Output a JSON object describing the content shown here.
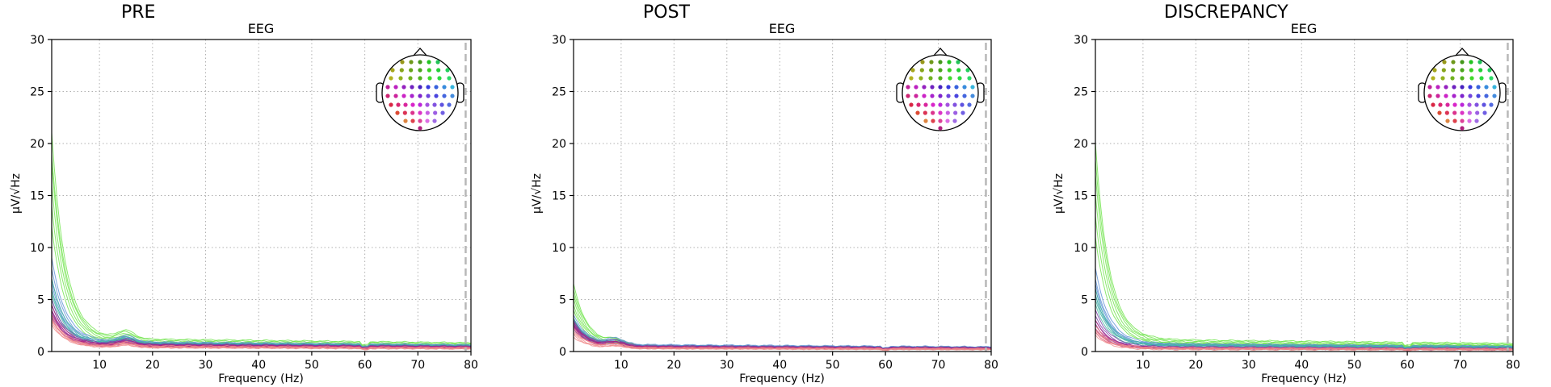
{
  "chart_data": [
    {
      "type": "line",
      "panel_title": "PRE",
      "title": "EEG",
      "xlabel": "Frequency (Hz)",
      "ylabel": "µV/√Hz",
      "xlim": [
        1,
        80
      ],
      "ylim": [
        0,
        30
      ],
      "xticks": [
        10,
        20,
        30,
        40,
        50,
        60,
        70,
        80
      ],
      "yticks": [
        0,
        5,
        10,
        15,
        20,
        25,
        30
      ],
      "grid": true,
      "lowpass_hz": 79,
      "sensor_legend": "top-right",
      "series_groups": [
        {
          "group": "frontal-green",
          "color": "#6ee34a",
          "count": 6,
          "peak_at_1hz": [
            21,
            19,
            18,
            16,
            14,
            12
          ],
          "floor": [
            1.3,
            1.2,
            1.1,
            1.0,
            0.9,
            0.8
          ]
        },
        {
          "group": "central-blue",
          "color": "#5a8fd6",
          "count": 5,
          "peak_at_1hz": [
            9,
            8,
            7,
            6.5,
            6
          ],
          "floor": [
            1.0,
            0.9,
            0.9,
            0.8,
            0.7
          ]
        },
        {
          "group": "temporal-teal",
          "color": "#3fb5a0",
          "count": 4,
          "peak_at_1hz": [
            7,
            6,
            5.5,
            5
          ],
          "floor": [
            0.9,
            0.8,
            0.8,
            0.7
          ]
        },
        {
          "group": "parietal-purple",
          "color": "#7a3aa8",
          "count": 5,
          "peak_at_1hz": [
            5,
            4.5,
            4,
            3.8,
            3.5
          ],
          "floor": [
            0.8,
            0.7,
            0.7,
            0.6,
            0.6
          ]
        },
        {
          "group": "occipital-magenta",
          "color": "#b0207e",
          "count": 4,
          "peak_at_1hz": [
            4.5,
            4,
            3.6,
            3.2
          ],
          "floor": [
            0.7,
            0.6,
            0.6,
            0.5
          ]
        },
        {
          "group": "lateral-pink",
          "color": "#f08a8a",
          "count": 5,
          "peak_at_1hz": [
            3.5,
            3.2,
            3.0,
            2.8,
            2.6
          ],
          "floor": [
            0.6,
            0.5,
            0.5,
            0.4,
            0.4
          ]
        }
      ],
      "alpha_peak": {
        "hz": 15,
        "gain": 0.7
      }
    },
    {
      "type": "line",
      "panel_title": "POST",
      "title": "EEG",
      "xlabel": "Frequency (Hz)",
      "ylabel": "µV/√Hz",
      "xlim": [
        1,
        80
      ],
      "ylim": [
        0,
        30
      ],
      "xticks": [
        10,
        20,
        30,
        40,
        50,
        60,
        70,
        80
      ],
      "yticks": [
        0,
        5,
        10,
        15,
        20,
        25,
        30
      ],
      "grid": true,
      "lowpass_hz": 79,
      "sensor_legend": "top-right",
      "series_groups": [
        {
          "group": "frontal-green",
          "color": "#6ee34a",
          "count": 6,
          "peak_at_1hz": [
            6.5,
            6,
            5.5,
            5,
            4.5,
            4
          ],
          "floor": [
            0.6,
            0.6,
            0.5,
            0.5,
            0.4,
            0.4
          ]
        },
        {
          "group": "central-blue",
          "color": "#5a8fd6",
          "count": 5,
          "peak_at_1hz": [
            3.5,
            3.2,
            3.0,
            2.8,
            2.6
          ],
          "floor": [
            0.7,
            0.6,
            0.6,
            0.5,
            0.5
          ]
        },
        {
          "group": "temporal-teal",
          "color": "#3fb5a0",
          "count": 4,
          "peak_at_1hz": [
            3.2,
            3.0,
            2.8,
            2.6
          ],
          "floor": [
            0.6,
            0.5,
            0.5,
            0.4
          ]
        },
        {
          "group": "parietal-purple",
          "color": "#7a3aa8",
          "count": 5,
          "peak_at_1hz": [
            3.0,
            2.8,
            2.6,
            2.4,
            2.2
          ],
          "floor": [
            0.6,
            0.5,
            0.5,
            0.4,
            0.4
          ]
        },
        {
          "group": "occipital-magenta",
          "color": "#b0207e",
          "count": 4,
          "peak_at_1hz": [
            2.8,
            2.6,
            2.4,
            2.2
          ],
          "floor": [
            0.5,
            0.5,
            0.4,
            0.4
          ]
        },
        {
          "group": "lateral-pink",
          "color": "#f08a8a",
          "count": 5,
          "peak_at_1hz": [
            2.2,
            2.0,
            1.8,
            1.6,
            1.4
          ],
          "floor": [
            0.4,
            0.4,
            0.3,
            0.3,
            0.3
          ]
        }
      ],
      "alpha_peak": {
        "hz": 9,
        "gain": 0.9
      }
    },
    {
      "type": "line",
      "panel_title": "DISCREPANCY",
      "title": "EEG",
      "xlabel": "Frequency (Hz)",
      "ylabel": "µV/√Hz",
      "xlim": [
        1,
        80
      ],
      "ylim": [
        0,
        30
      ],
      "xticks": [
        10,
        20,
        30,
        40,
        50,
        60,
        70,
        80
      ],
      "yticks": [
        0,
        5,
        10,
        15,
        20,
        25,
        30
      ],
      "grid": true,
      "lowpass_hz": 79,
      "sensor_legend": "top-right",
      "series_groups": [
        {
          "group": "frontal-green",
          "color": "#6ee34a",
          "count": 6,
          "peak_at_1hz": [
            20,
            18.5,
            17,
            15,
            13,
            11
          ],
          "floor": [
            1.2,
            1.1,
            1.0,
            0.9,
            0.8,
            0.8
          ]
        },
        {
          "group": "central-blue",
          "color": "#5a8fd6",
          "count": 5,
          "peak_at_1hz": [
            8,
            7,
            6.5,
            6,
            5.5
          ],
          "floor": [
            0.8,
            0.7,
            0.7,
            0.6,
            0.6
          ]
        },
        {
          "group": "temporal-teal",
          "color": "#3fb5a0",
          "count": 4,
          "peak_at_1hz": [
            6,
            5.5,
            5,
            4.5
          ],
          "floor": [
            0.7,
            0.6,
            0.6,
            0.5
          ]
        },
        {
          "group": "parietal-purple",
          "color": "#7a3aa8",
          "count": 5,
          "peak_at_1hz": [
            4,
            3.5,
            3,
            2.6,
            2.2
          ],
          "floor": [
            0.5,
            0.4,
            0.4,
            0.3,
            0.3
          ]
        },
        {
          "group": "occipital-magenta",
          "color": "#b0207e",
          "count": 4,
          "peak_at_1hz": [
            3,
            2.6,
            2.2,
            1.8
          ],
          "floor": [
            0.4,
            0.4,
            0.3,
            0.3
          ]
        },
        {
          "group": "lateral-pink",
          "color": "#f08a8a",
          "count": 5,
          "peak_at_1hz": [
            2.5,
            2.2,
            2.0,
            1.8,
            1.6
          ],
          "floor": [
            0.4,
            0.3,
            0.3,
            0.3,
            0.2
          ]
        }
      ],
      "alpha_peak": {
        "hz": 0,
        "gain": 0
      }
    }
  ]
}
